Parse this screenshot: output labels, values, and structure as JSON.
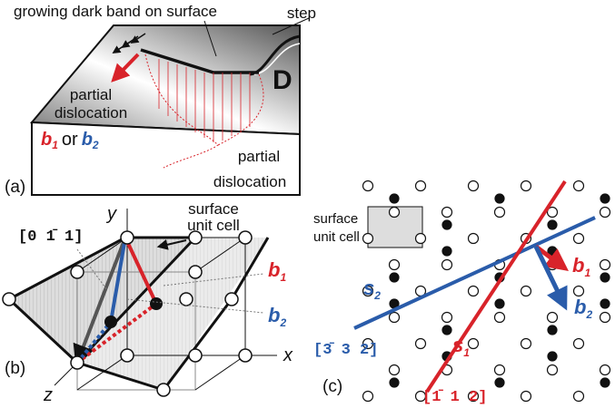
{
  "panel_a": {
    "label": "(a)",
    "band": "growing dark band on surface",
    "step": "step",
    "d": "D",
    "partial_1": [
      "partial",
      "dislocation"
    ],
    "burgers": {
      "b1": {
        "base": "b",
        "sub": "1"
      },
      "or": "or",
      "b2": {
        "base": "b",
        "sub": "2"
      }
    },
    "partial_2": [
      "partial",
      "dislocation"
    ]
  },
  "panel_b": {
    "label": "(b)",
    "axis_y": "y",
    "axis_x": "x",
    "axis_z": "z",
    "direction": "[0 1̄ 1]",
    "cell": [
      "surface",
      "unit cell"
    ],
    "b1": {
      "base": "b",
      "sub": "1"
    },
    "b2": {
      "base": "b",
      "sub": "2"
    }
  },
  "panel_c": {
    "label": "(c)",
    "cell": [
      "surface",
      "unit cell"
    ],
    "s2": {
      "base": "s",
      "sub": "2"
    },
    "s1": {
      "base": "s",
      "sub": "1"
    },
    "b1": {
      "base": "b",
      "sub": "1"
    },
    "b2": {
      "base": "b",
      "sub": "2"
    },
    "dir_s2": "[3̄ 3 2]",
    "dir_s1": "[1̄ 1 2]"
  }
}
